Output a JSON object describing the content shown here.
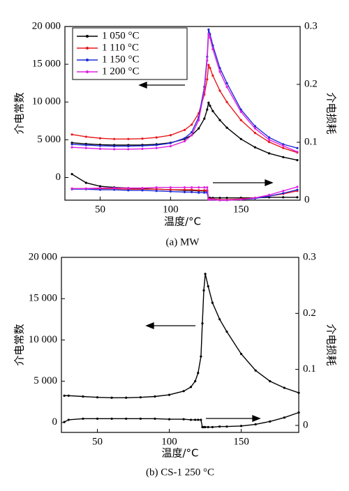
{
  "chart_data": [
    {
      "type": "line",
      "caption": "(a) MW",
      "x_label": "温度/°C",
      "y_label": "介电常数",
      "y2_label": "介电损耗",
      "x": [
        30,
        40,
        50,
        60,
        70,
        80,
        90,
        100,
        110,
        115,
        120,
        124,
        126,
        127,
        128,
        130,
        135,
        140,
        150,
        160,
        170,
        180,
        190
      ],
      "xlim": [
        25,
        192
      ],
      "xticks": [
        50,
        100,
        150
      ],
      "ylim": [
        -3000,
        20000
      ],
      "yticks": [
        0,
        {
          "value": 5000,
          "label": "5 000"
        },
        {
          "value": 10000,
          "label": "10 000"
        },
        {
          "value": 15000,
          "label": "15 000"
        },
        {
          "value": 20000,
          "label": "20 000"
        }
      ],
      "y2lim": [
        0,
        0.3
      ],
      "y2ticks": [
        0,
        0.1,
        0.2,
        0.3
      ],
      "legend": "upper left",
      "series": [
        {
          "name": "1 050 °C",
          "color": "#000000",
          "values": [
            4600,
            4450,
            4350,
            4300,
            4300,
            4320,
            4400,
            4600,
            5100,
            5600,
            6500,
            7800,
            9000,
            9900,
            9500,
            8800,
            7600,
            6600,
            5100,
            4000,
            3200,
            2700,
            2300
          ]
        },
        {
          "name": "1 110 °C",
          "color": "#e8171b",
          "values": [
            5700,
            5400,
            5200,
            5100,
            5100,
            5150,
            5300,
            5600,
            6300,
            7000,
            8500,
            11000,
            13000,
            14900,
            14500,
            13500,
            11500,
            10000,
            7600,
            5900,
            4700,
            3900,
            3300
          ]
        },
        {
          "name": "1 150 °C",
          "color": "#1f2bd6",
          "values": [
            4400,
            4300,
            4200,
            4150,
            4150,
            4200,
            4300,
            4550,
            5200,
            6000,
            8000,
            12000,
            16000,
            19600,
            19000,
            17500,
            14500,
            12500,
            9000,
            6800,
            5300,
            4400,
            3900
          ]
        },
        {
          "name": "1 200 °C",
          "color": "#e020e0",
          "values": [
            4000,
            3900,
            3800,
            3750,
            3750,
            3800,
            3900,
            4150,
            4800,
            5600,
            7600,
            11500,
            15500,
            19000,
            18500,
            17000,
            14000,
            12000,
            8700,
            6500,
            5000,
            4200,
            3400
          ]
        },
        {
          "color": "#000000",
          "axis": "y2",
          "values": [
            0.045,
            0.03,
            0.024,
            0.022,
            0.021,
            0.02,
            0.019,
            0.018,
            0.017,
            0.017,
            0.016,
            0.016,
            0.016,
            0.004,
            0.004,
            0.004,
            0.004,
            0.004,
            0.004,
            0.004,
            0.005,
            0.005,
            0.005
          ]
        },
        {
          "color": "#e8171b",
          "axis": "y2",
          "values": [
            0.02,
            0.02,
            0.02,
            0.02,
            0.019,
            0.019,
            0.019,
            0.018,
            0.018,
            0.018,
            0.017,
            0.017,
            0.017,
            0.002,
            0.002,
            0.002,
            0.001,
            0.001,
            0.002,
            0.004,
            0.007,
            0.011,
            0.016
          ]
        },
        {
          "color": "#1f2bd6",
          "axis": "y2",
          "values": [
            0.019,
            0.019,
            0.018,
            0.018,
            0.017,
            0.017,
            0.016,
            0.015,
            0.014,
            0.014,
            0.013,
            0.013,
            0.013,
            0.001,
            0.001,
            0.001,
            0,
            0,
            0.001,
            0.003,
            0.007,
            0.012,
            0.018
          ]
        },
        {
          "color": "#e020e0",
          "axis": "y2",
          "values": [
            0.02,
            0.02,
            0.021,
            0.021,
            0.021,
            0.021,
            0.022,
            0.022,
            0.022,
            0.022,
            0.022,
            0.022,
            0.022,
            0.001,
            0.001,
            0.001,
            0,
            0,
            0.001,
            0.004,
            0.009,
            0.016,
            0.023
          ]
        }
      ]
    },
    {
      "type": "line",
      "caption": "(b) CS-1 250 °C",
      "x_label": "温度/°C",
      "y_label": "介电常数",
      "y2_label": "介电损耗",
      "x": [
        27,
        30,
        40,
        50,
        60,
        70,
        80,
        90,
        100,
        110,
        115,
        118,
        120,
        122,
        123,
        124,
        125,
        127,
        130,
        135,
        140,
        150,
        160,
        170,
        180,
        190
      ],
      "xlim": [
        25,
        190
      ],
      "xticks": [
        50,
        100,
        150
      ],
      "ylim": [
        -1200,
        20000
      ],
      "yticks": [
        0,
        {
          "value": 5000,
          "label": "5 000"
        },
        {
          "value": 10000,
          "label": "10 000"
        },
        {
          "value": 15000,
          "label": "15 000"
        },
        {
          "value": 20000,
          "label": "20 000"
        }
      ],
      "y2lim": [
        -0.0125,
        0.3
      ],
      "y2ticks": [
        0,
        0.1,
        0.2,
        0.3
      ],
      "series": [
        {
          "color": "#000000",
          "values": [
            3250,
            3250,
            3150,
            3050,
            3000,
            3000,
            3050,
            3150,
            3350,
            3800,
            4300,
            5000,
            6000,
            8000,
            12000,
            16000,
            18000,
            16500,
            14500,
            12500,
            11000,
            8300,
            6300,
            5000,
            4200,
            3600
          ]
        },
        {
          "color": "#000000",
          "axis": "y2",
          "values": [
            0.006,
            0.01,
            0.012,
            0.012,
            0.012,
            0.012,
            0.012,
            0.012,
            0.011,
            0.011,
            0.01,
            0.01,
            0.01,
            0.01,
            -0.003,
            -0.003,
            -0.003,
            -0.003,
            -0.003,
            -0.002,
            -0.002,
            -0.001,
            0.002,
            0.007,
            0.014,
            0.023
          ]
        }
      ]
    }
  ]
}
